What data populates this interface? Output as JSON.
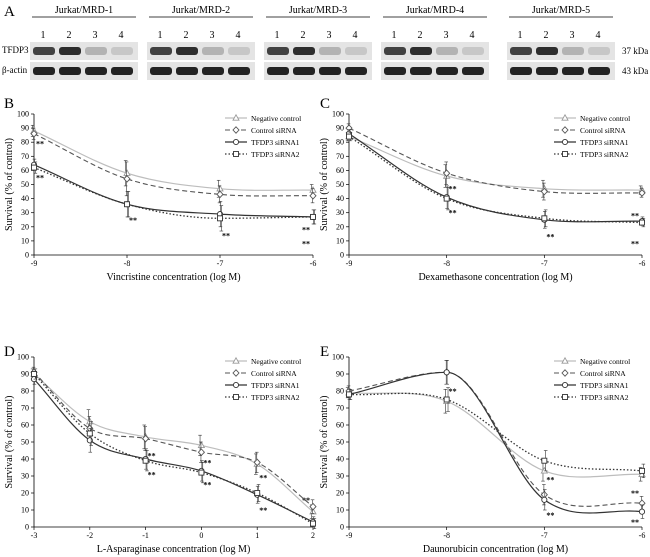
{
  "figure": {
    "panel_a": {
      "label": "A",
      "groups": [
        "Jurkat/MRD-1",
        "Jurkat/MRD-2",
        "Jurkat/MRD-3",
        "Jurkat/MRD-4",
        "Jurkat/MRD-5"
      ],
      "lanes": [
        "1",
        "2",
        "3",
        "4"
      ],
      "rows": [
        {
          "label": "TFDP3",
          "size": "37 kDa",
          "intensity": [
            0.8,
            0.9,
            0.25,
            0.15
          ]
        },
        {
          "label": "β-actin",
          "size": "43 kDa",
          "intensity": [
            0.95,
            0.95,
            0.95,
            0.95
          ]
        }
      ]
    }
  },
  "chart_data": [
    {
      "panel": "B",
      "type": "line",
      "xlabel": "Vincristine concentration (log M)",
      "ylabel": "Survival (% of control)",
      "x": [
        -9,
        -8,
        -7,
        -6
      ],
      "xticks": [
        "-9",
        "-8",
        "-7",
        "-6"
      ],
      "xlim": [
        -9,
        -6
      ],
      "ylim": [
        0,
        100
      ],
      "yticks": [
        "0",
        "10",
        "20",
        "30",
        "40",
        "50",
        "60",
        "70",
        "80",
        "90",
        "100"
      ],
      "legend": [
        "Negative control",
        "Control siRNA",
        "TFDP3 siRNA1",
        "TFDP3 siRNA2"
      ],
      "series": [
        {
          "name": "Negative control",
          "values": [
            88,
            58,
            47,
            46
          ],
          "err": [
            4,
            9,
            6,
            4
          ]
        },
        {
          "name": "Control siRNA",
          "values": [
            86,
            54,
            43,
            42
          ],
          "err": [
            4,
            12,
            6,
            5
          ]
        },
        {
          "name": "TFDP3 siRNA1",
          "values": [
            64,
            36,
            29,
            27
          ],
          "err": [
            4,
            9,
            9,
            5
          ]
        },
        {
          "name": "TFDP3 siRNA2",
          "values": [
            62,
            36,
            26,
            27
          ],
          "err": [
            4,
            9,
            9,
            5
          ]
        }
      ],
      "annotations": [
        {
          "x": -9,
          "y": 79,
          "text": "**"
        },
        {
          "x": -9,
          "y": 55,
          "text": "**"
        },
        {
          "x": -8,
          "y": 25,
          "text": "**"
        },
        {
          "x": -7,
          "y": 14,
          "text": "**"
        },
        {
          "x": -6,
          "y": 18,
          "text": "**"
        },
        {
          "x": -6,
          "y": 8,
          "text": "**"
        }
      ]
    },
    {
      "panel": "C",
      "type": "line",
      "xlabel": "Dexamethasone concentration (log M)",
      "ylabel": "Survival (% of control)",
      "x": [
        -9,
        -8,
        -7,
        -6
      ],
      "xticks": [
        "-9",
        "-8",
        "-7",
        "-6"
      ],
      "xlim": [
        -9,
        -6
      ],
      "ylim": [
        0,
        100
      ],
      "yticks": [
        "0",
        "10",
        "20",
        "30",
        "40",
        "50",
        "60",
        "70",
        "80",
        "90",
        "100"
      ],
      "legend": [
        "Negative control",
        "Control siRNA",
        "TFDP3 siRNA1",
        "TFDP3 siRNA2"
      ],
      "series": [
        {
          "name": "Negative control",
          "values": [
            84,
            56,
            47,
            46
          ],
          "err": [
            3,
            8,
            6,
            3
          ]
        },
        {
          "name": "Control siRNA",
          "values": [
            90,
            58,
            45,
            44
          ],
          "err": [
            3,
            8,
            6,
            3
          ]
        },
        {
          "name": "TFDP3 siRNA1",
          "values": [
            86,
            41,
            25,
            24
          ],
          "err": [
            3,
            8,
            6,
            3
          ]
        },
        {
          "name": "TFDP3 siRNA2",
          "values": [
            84,
            40,
            26,
            23
          ],
          "err": [
            3,
            8,
            6,
            3
          ]
        }
      ],
      "annotations": [
        {
          "x": -8,
          "y": 47,
          "text": "**"
        },
        {
          "x": -8,
          "y": 30,
          "text": "**"
        },
        {
          "x": -7,
          "y": 13,
          "text": "**"
        },
        {
          "x": -6,
          "y": 28,
          "text": "**"
        },
        {
          "x": -6,
          "y": 8,
          "text": "**"
        }
      ]
    },
    {
      "panel": "D",
      "type": "line",
      "xlabel": "L-Asparaginase concentration (log M)",
      "ylabel": "Survival (% of control)",
      "x": [
        -3,
        -2,
        -1,
        0,
        1,
        2
      ],
      "xticks": [
        "-3",
        "-2",
        "-1",
        "0",
        "1",
        "2"
      ],
      "xlim": [
        -3,
        2
      ],
      "ylim": [
        0,
        100
      ],
      "yticks": [
        "0",
        "10",
        "20",
        "30",
        "40",
        "50",
        "60",
        "70",
        "80",
        "90",
        "100"
      ],
      "legend": [
        "Negative control",
        "Control siRNA",
        "TFDP3 siRNA1",
        "TFDP3 siRNA2"
      ],
      "series": [
        {
          "name": "Negative control",
          "values": [
            90,
            62,
            53,
            48,
            37,
            9
          ],
          "err": [
            3,
            7,
            7,
            6,
            6,
            4
          ]
        },
        {
          "name": "Control siRNA",
          "values": [
            91,
            58,
            52,
            44,
            38,
            12
          ],
          "err": [
            3,
            7,
            7,
            6,
            6,
            4
          ]
        },
        {
          "name": "TFDP3 siRNA1",
          "values": [
            87,
            51,
            40,
            33,
            19,
            3
          ],
          "err": [
            3,
            7,
            6,
            6,
            5,
            3
          ]
        },
        {
          "name": "TFDP3 siRNA2",
          "values": [
            90,
            55,
            39,
            32,
            20,
            2
          ],
          "err": [
            3,
            7,
            6,
            6,
            5,
            3
          ]
        }
      ],
      "annotations": [
        {
          "x": -1,
          "y": 42,
          "text": "**"
        },
        {
          "x": -1,
          "y": 31,
          "text": "**"
        },
        {
          "x": 0,
          "y": 38,
          "text": "**"
        },
        {
          "x": 0,
          "y": 25,
          "text": "**"
        },
        {
          "x": 1,
          "y": 29,
          "text": "**"
        },
        {
          "x": 1,
          "y": 10,
          "text": "**"
        },
        {
          "x": 2,
          "y": 16,
          "text": "**"
        }
      ]
    },
    {
      "panel": "E",
      "type": "line",
      "xlabel": "Daunorubicin concentration (log M)",
      "ylabel": "Survival (% of control)",
      "x": [
        -9,
        -8,
        -7,
        -6
      ],
      "xticks": [
        "-9",
        "-8",
        "-7",
        "-6"
      ],
      "xlim": [
        -9,
        -6
      ],
      "ylim": [
        0,
        100
      ],
      "yticks": [
        "0",
        "10",
        "20",
        "30",
        "40",
        "50",
        "60",
        "70",
        "80",
        "90",
        "100"
      ],
      "legend": [
        "Negative control",
        "Control siRNA",
        "TFDP3 siRNA1",
        "TFDP3 siRNA2"
      ],
      "series": [
        {
          "name": "Negative control",
          "values": [
            79,
            74,
            33,
            31
          ],
          "err": [
            3,
            7,
            6,
            4
          ]
        },
        {
          "name": "Control siRNA",
          "values": [
            80,
            91,
            19,
            14
          ],
          "err": [
            3,
            7,
            6,
            4
          ]
        },
        {
          "name": "TFDP3 siRNA1",
          "values": [
            78,
            91,
            16,
            9
          ],
          "err": [
            3,
            7,
            6,
            4
          ]
        },
        {
          "name": "TFDP3 siRNA2",
          "values": [
            78,
            75,
            39,
            33
          ],
          "err": [
            3,
            7,
            6,
            4
          ]
        }
      ],
      "annotations": [
        {
          "x": -8,
          "y": 80,
          "text": "**"
        },
        {
          "x": -7,
          "y": 28,
          "text": "**"
        },
        {
          "x": -7,
          "y": 7,
          "text": "**"
        },
        {
          "x": -6,
          "y": 20,
          "text": "**"
        },
        {
          "x": -6,
          "y": 3,
          "text": "**"
        }
      ]
    }
  ]
}
